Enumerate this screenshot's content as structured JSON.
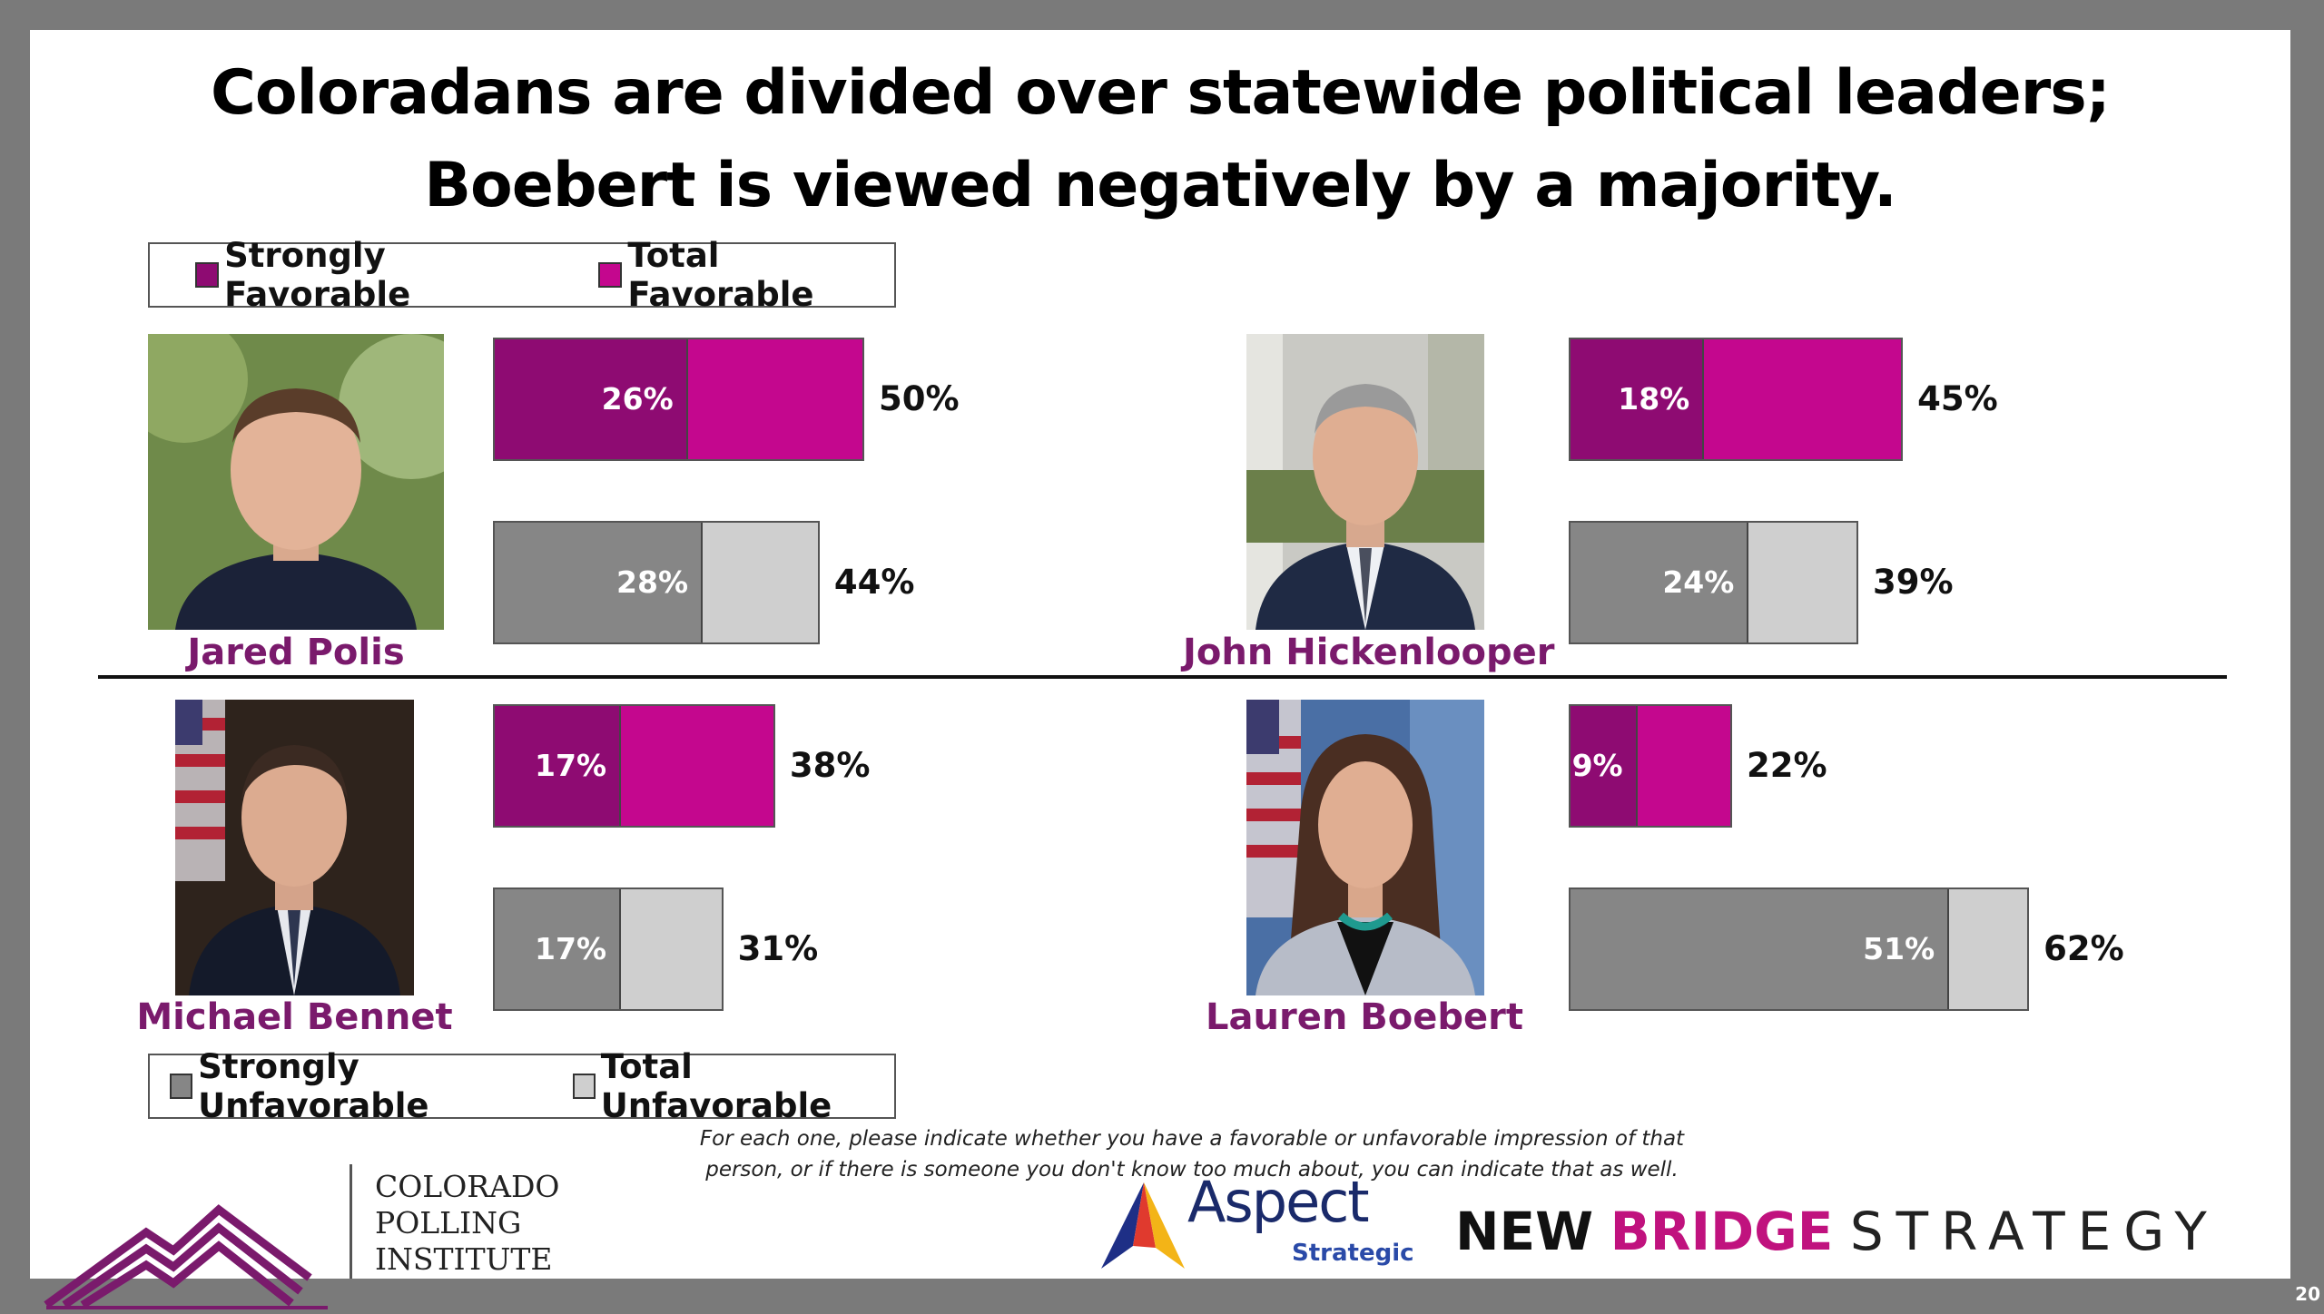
{
  "title_line1": "Coloradans are divided over statewide political leaders;",
  "title_line2": "Boebert is viewed negatively by a majority.",
  "legend_top": {
    "strong": "Strongly Favorable",
    "total": "Total Favorable"
  },
  "legend_bottom": {
    "strong": "Strongly Unfavorable",
    "total": "Total Unfavorable"
  },
  "colors": {
    "strong_fav": "#8e0b72",
    "total_fav": "#c4078e",
    "strong_unfav": "#868686",
    "total_unfav": "#cfcfcf"
  },
  "chart_data": {
    "type": "bar",
    "orientation": "horizontal",
    "categories": [
      "Jared Polis",
      "John Hickenlooper",
      "Michael Bennet",
      "Lauren Boebert"
    ],
    "series": [
      {
        "name": "Strongly Favorable",
        "values": [
          26,
          18,
          17,
          9
        ]
      },
      {
        "name": "Total Favorable",
        "values": [
          50,
          45,
          38,
          22
        ]
      },
      {
        "name": "Strongly Unfavorable",
        "values": [
          28,
          24,
          17,
          51
        ]
      },
      {
        "name": "Total Unfavorable",
        "values": [
          44,
          39,
          31,
          62
        ]
      }
    ],
    "unit": "%"
  },
  "panels": [
    {
      "name": "Jared Polis",
      "fav_strong": "26%",
      "fav_total": "50%",
      "unfav_strong": "28%",
      "unfav_total": "44%"
    },
    {
      "name": "John Hickenlooper",
      "fav_strong": "18%",
      "fav_total": "45%",
      "unfav_strong": "24%",
      "unfav_total": "39%"
    },
    {
      "name": "Michael Bennet",
      "fav_strong": "17%",
      "fav_total": "38%",
      "unfav_strong": "17%",
      "unfav_total": "31%"
    },
    {
      "name": "Lauren Boebert",
      "fav_strong": "9%",
      "fav_total": "22%",
      "unfav_strong": "51%",
      "unfav_total": "62%"
    }
  ],
  "footnote_line1": "For each one, please indicate whether you have a favorable or unfavorable impression of that",
  "footnote_line2": "person, or if there is someone you don't know too much about, you can indicate that as well.",
  "logos": {
    "cpi_line1": "COLORADO",
    "cpi_line2": "POLLING",
    "cpi_line3": "INSTITUTE",
    "aspect": "Aspect",
    "aspect_sub": "Strategic",
    "nbs_1": "NEW",
    "nbs_2": "BRIDGE",
    "nbs_3": "STRATEGY"
  },
  "page_number": "20"
}
